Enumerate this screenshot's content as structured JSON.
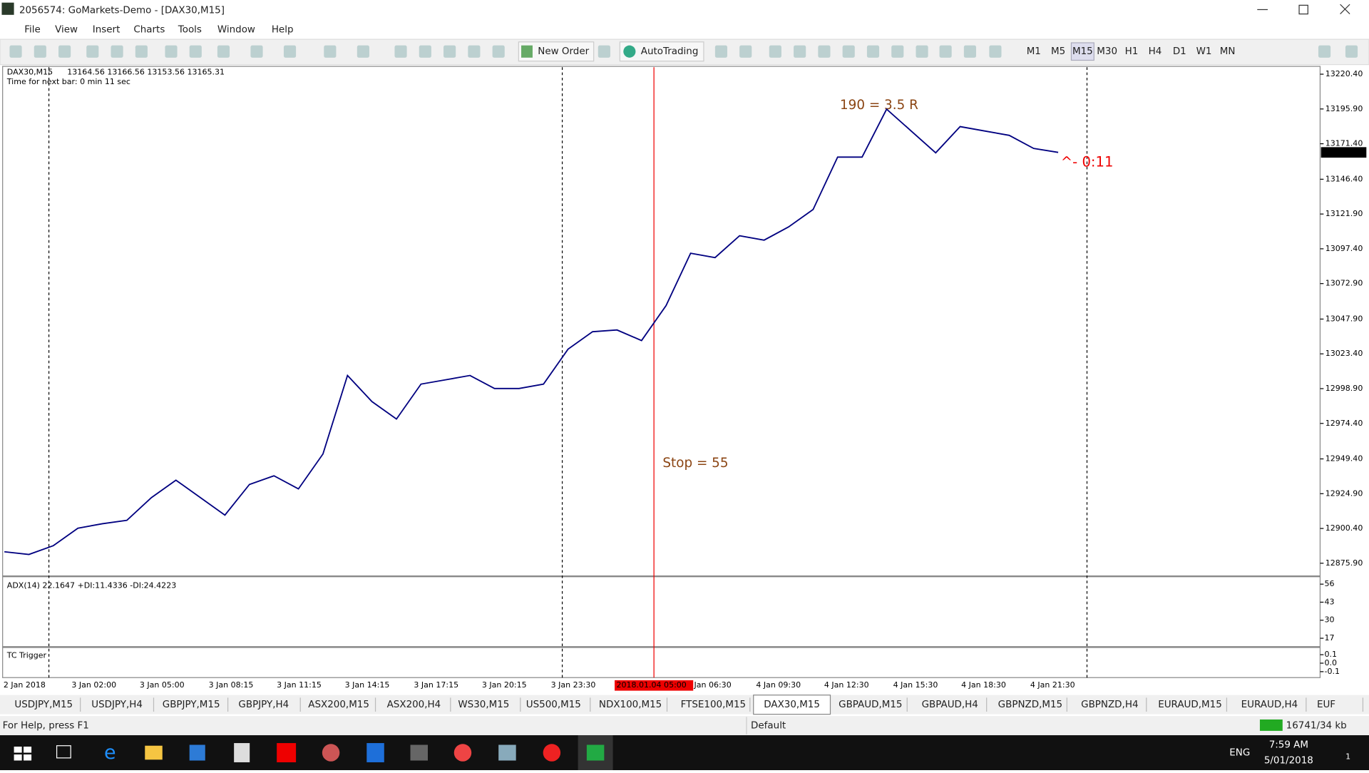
{
  "window": {
    "title": "2056574: GoMarkets-Demo - [DAX30,M15]"
  },
  "menu": [
    "File",
    "View",
    "Insert",
    "Charts",
    "Tools",
    "Window",
    "Help"
  ],
  "toolbar": {
    "new_order": "New Order",
    "autotrading": "AutoTrading",
    "timeframes": [
      "M1",
      "M5",
      "M15",
      "M30",
      "H1",
      "H4",
      "D1",
      "W1",
      "MN"
    ]
  },
  "chart_data": {
    "type": "line",
    "header": "DAX30,M15",
    "ohlc": "13164.56 13166.56 13153.56 13165.31",
    "timer": "Time for next bar: 0 min 11 sec",
    "annotations": [
      "190 = 3.5 R",
      "Stop = 55",
      "^- 0:11"
    ],
    "current_price": 13165.31,
    "color": "#000080",
    "values": [
      12884.0,
      12882.1,
      12888.3,
      12900.6,
      12903.7,
      12906.1,
      12922.1,
      12934.4,
      12922.1,
      12909.8,
      12931.4,
      12937.5,
      12928.3,
      12952.9,
      13008.2,
      12989.8,
      12977.5,
      13002.1,
      13005.1,
      13008.2,
      12999.0,
      12999.0,
      13002.1,
      13026.7,
      13039.0,
      13040.2,
      13032.8,
      13057.4,
      13094.3,
      13091.2,
      13106.6,
      13103.5,
      13112.8,
      13125.1,
      13162.0,
      13162.0,
      13195.8,
      13180.4,
      13165.0,
      13183.5,
      13180.4,
      13177.3,
      13168.1,
      13165.31
    ],
    "ylim": [
      12866.7,
      13225.3
    ],
    "yticks": [
      {
        "value": 13220.4,
        "label": "13220.40"
      },
      {
        "value": 13195.9,
        "label": "13195.90"
      },
      {
        "value": 13171.4,
        "label": "13171.40"
      },
      {
        "value": 13146.4,
        "label": "13146.40"
      },
      {
        "value": 13121.9,
        "label": "13121.90"
      },
      {
        "value": 13097.4,
        "label": "13097.40"
      },
      {
        "value": 13072.9,
        "label": "13072.90"
      },
      {
        "value": 13047.9,
        "label": "13047.90"
      },
      {
        "value": 13023.4,
        "label": "13023.40"
      },
      {
        "value": 12998.9,
        "label": "12998.90"
      },
      {
        "value": 12974.4,
        "label": "12974.40"
      },
      {
        "value": 12949.4,
        "label": "12949.40"
      },
      {
        "value": 12924.9,
        "label": "12924.90"
      },
      {
        "value": 12900.4,
        "label": "12900.40"
      },
      {
        "value": 12875.9,
        "label": "12875.90"
      }
    ],
    "x_labels": [
      "2 Jan 2018",
      "3 Jan 02:00",
      "3 Jan 05:00",
      "3 Jan 08:15",
      "3 Jan 11:15",
      "3 Jan 14:15",
      "3 Jan 17:15",
      "3 Jan 20:15",
      "3 Jan 23:30",
      "2018.01.04 05:00",
      "Jan 06:30",
      "4 Jan 09:30",
      "4 Jan 12:30",
      "4 Jan 15:30",
      "4 Jan 18:30",
      "4 Jan 21:30"
    ],
    "adx": {
      "label": "ADX(14) 22.1647 +DI:11.4336 -DI:24.4223",
      "ylim": [
        11.3,
        60.4
      ],
      "yticks": [
        56,
        43,
        30,
        17
      ]
    },
    "trigger": {
      "label": "TC Trigger",
      "ylim": [
        -0.17,
        0.18
      ],
      "yticks": [
        0.1,
        {
          "value": 0,
          "label": "0.0"
        },
        -0.1
      ]
    }
  },
  "tabs": [
    "USDJPY,M15",
    "USDJPY,H4",
    "GBPJPY,M15",
    "GBPJPY,H4",
    "ASX200,M15",
    "ASX200,H4",
    "WS30,M15",
    "US500,M15",
    "NDX100,M15",
    "FTSE100,M15",
    "DAX30,M15",
    "GBPAUD,M15",
    "GBPAUD,H4",
    "GBPNZD,M15",
    "GBPNZD,H4",
    "EURAUD,M15",
    "EURAUD,H4",
    "EUF"
  ],
  "status": {
    "help": "For Help, press F1",
    "profile": "Default",
    "traffic": "16741/34 kb"
  },
  "taskbar": {
    "language": "ENG",
    "time": "7:59 AM",
    "date": "5/01/2018",
    "notifications": "1"
  }
}
